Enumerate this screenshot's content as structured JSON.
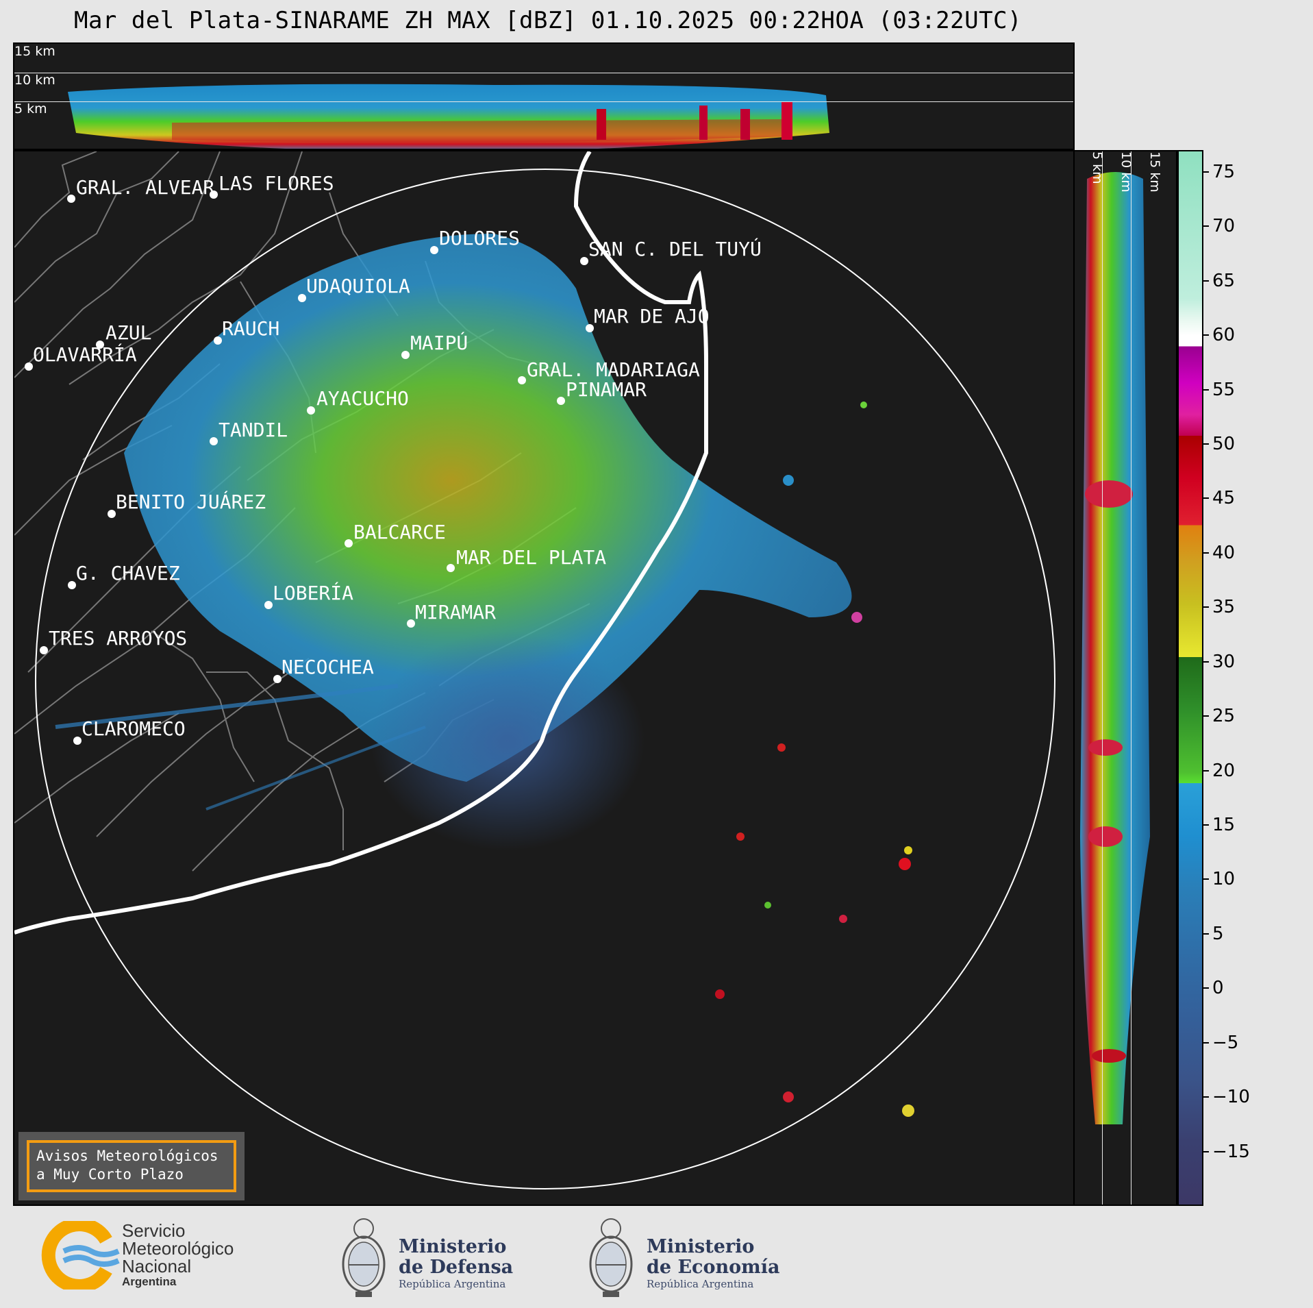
{
  "title": "Mar del Plata-SINARAME ZH MAX [dBZ] 01.10.2025 00:22HOA (03:22UTC)",
  "top_panel": {
    "labels": [
      "15 km",
      "10 km",
      "5 km"
    ]
  },
  "side_panel": {
    "labels": [
      "5 km",
      "10 km",
      "15 km"
    ]
  },
  "cities": [
    {
      "name": "GRAL. ALVEAR"
    },
    {
      "name": "LAS FLORES"
    },
    {
      "name": "DOLORES"
    },
    {
      "name": "SAN C. DEL TUYÚ"
    },
    {
      "name": "UDAQUIOLA"
    },
    {
      "name": "MAR DE AJÓ"
    },
    {
      "name": "AZUL"
    },
    {
      "name": "RAUCH"
    },
    {
      "name": "MAIPÚ"
    },
    {
      "name": "OLAVARRÍA"
    },
    {
      "name": "GRAL. MADARIAGA"
    },
    {
      "name": "PINAMAR"
    },
    {
      "name": "AYACUCHO"
    },
    {
      "name": "TANDIL"
    },
    {
      "name": "BENITO JUÁREZ"
    },
    {
      "name": "BALCARCE"
    },
    {
      "name": "MAR DEL PLATA"
    },
    {
      "name": "G. CHAVEZ"
    },
    {
      "name": "LOBERÍA"
    },
    {
      "name": "MIRAMAR"
    },
    {
      "name": "TRES ARROYOS"
    },
    {
      "name": "NECOCHEA"
    },
    {
      "name": "CLAROMECO"
    }
  ],
  "colorbar": {
    "unit": "dBZ",
    "ticks": [
      "75",
      "70",
      "65",
      "60",
      "55",
      "50",
      "45",
      "40",
      "35",
      "30",
      "25",
      "20",
      "15",
      "10",
      "5",
      "0",
      "−5",
      "−10",
      "−15"
    ],
    "range": [
      -20,
      77
    ]
  },
  "warning_box": {
    "line1": "Avisos Meteorológicos",
    "line2": "a Muy Corto Plazo"
  },
  "logos": {
    "smn": {
      "line1": "Servicio",
      "line2": "Meteorológico",
      "line3": "Nacional",
      "line4": "Argentina"
    },
    "defensa": {
      "line1": "Ministerio",
      "line2": "de Defensa",
      "line3": "República Argentina"
    },
    "economia": {
      "line1": "Ministerio",
      "line2": "de Economía",
      "line3": "República Argentina"
    }
  }
}
